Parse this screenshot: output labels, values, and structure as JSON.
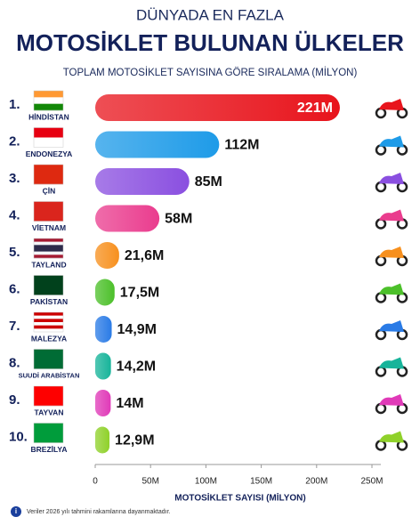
{
  "chart_data": {
    "type": "bar",
    "orientation": "horizontal",
    "title": "DÜNYADA EN FAZLA",
    "subtitle_main": "MOTOSİKLET BULUNAN ÜLKELER",
    "subtitle": "TOPLAM MOTOSİKLET SAYISINA GÖRE SIRALAMA (MİLYON)",
    "rank_labels": [
      "1.",
      "2.",
      "3.",
      "4.",
      "5.",
      "6.",
      "7.",
      "8.",
      "9.",
      "10."
    ],
    "categories": [
      "HİNDİSTAN",
      "ENDONEZYA",
      "ÇİN",
      "VİETNAM",
      "TAYLAND",
      "PAKİSTAN",
      "MALEZYA",
      "SUUDİ ARABİSTAN",
      "TAYVAN",
      "BREZİLYA"
    ],
    "values": [
      221,
      112,
      85,
      58,
      21.6,
      17.5,
      14.9,
      14.2,
      14,
      12.9
    ],
    "value_labels": [
      "221M",
      "112M",
      "85M",
      "58M",
      "21,6M",
      "17,5M",
      "14,9M",
      "14,2M",
      "14M",
      "12,9M"
    ],
    "colors": [
      "#e8141c",
      "#1e9be8",
      "#8a4fe0",
      "#ea3c8e",
      "#f7901e",
      "#4cc02a",
      "#2a7be6",
      "#17b49a",
      "#e03ab8",
      "#8fd12a"
    ],
    "xlim": [
      0,
      250
    ],
    "xticks": [
      0,
      {
        "value": 50,
        "label": "50M"
      },
      {
        "value": 100,
        "label": "100M"
      },
      {
        "value": 150,
        "label": "150M"
      },
      {
        "value": 200,
        "label": "200M"
      },
      {
        "value": 250,
        "label": "250M"
      }
    ],
    "xlabel": "MOTOSİKLET SAYISI (MİLYON)",
    "note": "Veriler 2026 yılı tahmini rakamlarına dayanmaktadır."
  }
}
